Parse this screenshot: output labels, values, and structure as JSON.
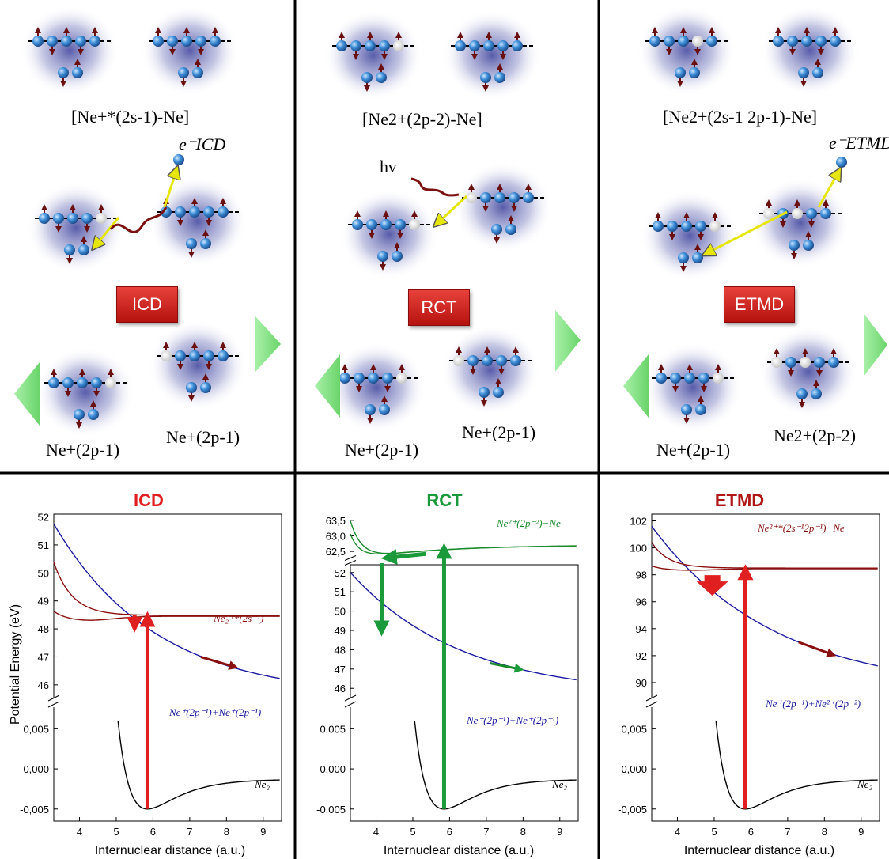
{
  "top_panels": [
    {
      "initial_state": "[Ne+*(2s-1)-Ne]",
      "electron_label": "e⁻ICD",
      "process_badge": "ICD",
      "final_left": "Ne+(2p-1)",
      "final_right": "Ne+(2p-1)"
    },
    {
      "initial_state": "[Ne2+(2p-2)-Ne]",
      "photon_label": "hν",
      "process_badge": "RCT",
      "final_left": "Ne+(2p-1)",
      "final_right": "Ne+(2p-1)"
    },
    {
      "initial_state": "[Ne2+(2s-1 2p-1)-Ne]",
      "electron_label": "e⁻ETMD",
      "process_badge": "ETMD",
      "final_left": "Ne+(2p-1)",
      "final_right": "Ne2+(2p-2)"
    }
  ],
  "chart_data": [
    {
      "type": "line",
      "title": "ICD",
      "title_color": "#e02020",
      "xlabel": "Internuclear distance (a.u.)",
      "ylabel": "Potential Energy (eV)",
      "xlim": [
        3.3,
        9.5
      ],
      "xticks": [
        "4",
        "5",
        "6",
        "7",
        "8",
        "9"
      ],
      "upper_yticks": [
        "46",
        "47",
        "48",
        "49",
        "50",
        "51",
        "52"
      ],
      "lower_yticks": [
        "0,005",
        "0,000",
        "-0,005"
      ],
      "curve_labels": {
        "excited": "Ne₂⁺*(2s⁻¹)",
        "final": "Ne⁺(2p⁻¹)+Ne⁺(2p⁻¹)",
        "ground": "Ne₂"
      }
    },
    {
      "type": "line",
      "title": "RCT",
      "title_color": "#1a9a3a",
      "xlabel": "Internuclear distance (a.u.)",
      "xlim": [
        3.3,
        9.5
      ],
      "xticks": [
        "4",
        "5",
        "6",
        "7",
        "8",
        "9"
      ],
      "top_yticks": [
        "62,5",
        "63,0",
        "63,5"
      ],
      "upper_yticks": [
        "46",
        "47",
        "48",
        "49",
        "50",
        "51",
        "52"
      ],
      "lower_yticks": [
        "0,005",
        "0,000",
        "-0,005"
      ],
      "curve_labels": {
        "excited": "Ne²⁺(2p⁻²)−Ne",
        "final": "Ne⁺(2p⁻¹)+Ne⁺(2p⁻¹)",
        "ground": "Ne₂"
      }
    },
    {
      "type": "line",
      "title": "ETMD",
      "title_color": "#b01818",
      "xlabel": "Internuclear distance (a.u.)",
      "xlim": [
        3.3,
        9.5
      ],
      "xticks": [
        "4",
        "5",
        "6",
        "7",
        "8",
        "9"
      ],
      "upper_yticks": [
        "90",
        "92",
        "94",
        "96",
        "98",
        "100",
        "102"
      ],
      "lower_yticks": [
        "0,005",
        "0,000",
        "-0,005"
      ],
      "curve_labels": {
        "excited": "Ne²⁺*(2s⁻¹2p⁻¹)−Ne",
        "final": "Ne⁺(2p⁻¹)+Ne²⁺(2p⁻²)",
        "ground": "Ne₂"
      }
    }
  ]
}
